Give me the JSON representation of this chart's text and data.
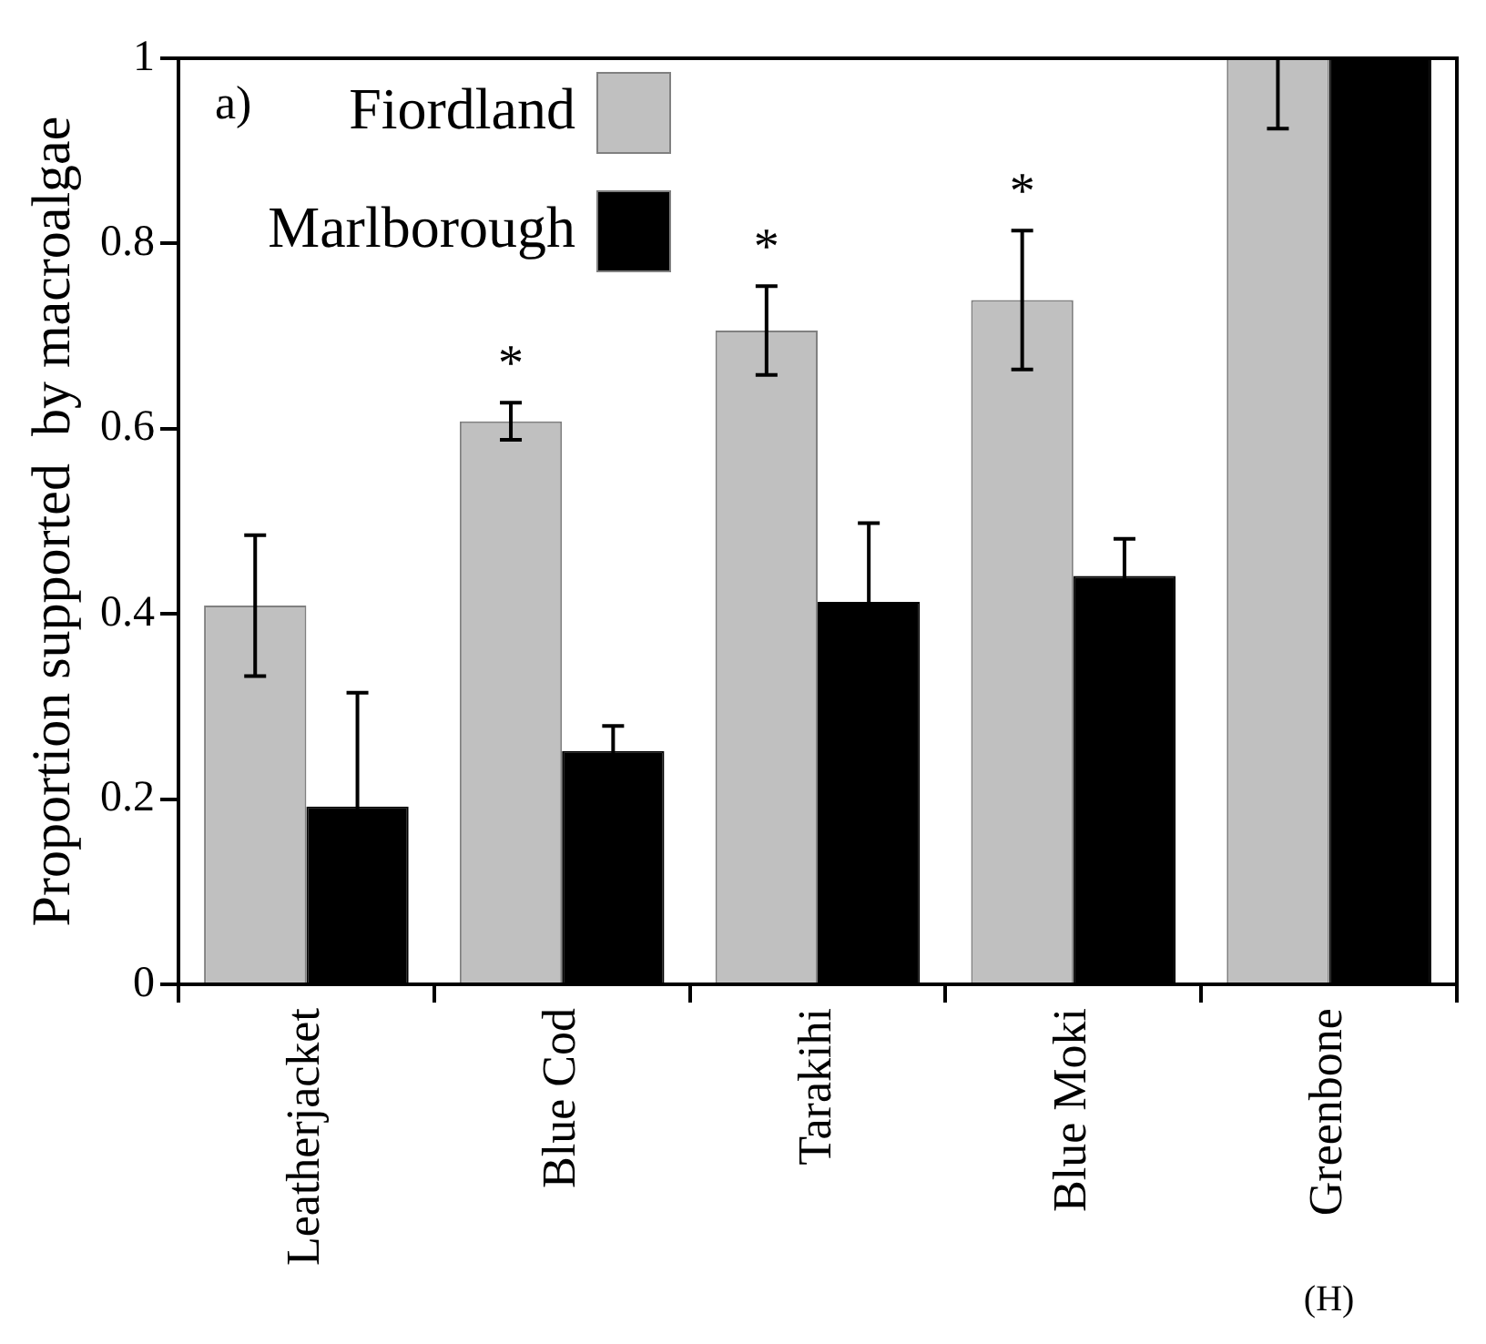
{
  "chart_data": {
    "type": "bar",
    "ylabel": "Proportion supported  by macroalgae",
    "categories": [
      "Leatherjacket",
      "Blue Cod",
      "Tarakihi",
      "Blue Moki",
      "Greenbone"
    ],
    "series": [
      {
        "name": "Fiordland",
        "color": "#c0c0c0",
        "values": [
          0.409,
          0.608,
          0.706,
          0.739,
          1
        ],
        "errors": [
          0.076,
          0.02,
          0.048,
          0.075,
          0.076
        ],
        "value_labels": [
          null,
          "*",
          "*",
          "*",
          null
        ]
      },
      {
        "name": "Marlborough",
        "color": "#000000",
        "values": [
          0.192,
          0.252,
          0.413,
          0.441,
          1
        ],
        "errors": [
          0.123,
          0.027,
          0.085,
          0.04,
          null
        ]
      }
    ],
    "ylim": [
      0,
      1
    ],
    "yticks": [
      0,
      0.2,
      0.4,
      0.6,
      0.8,
      1
    ],
    "grid": false,
    "legend": "top left",
    "annotations": [
      "a)",
      "(H)"
    ]
  }
}
